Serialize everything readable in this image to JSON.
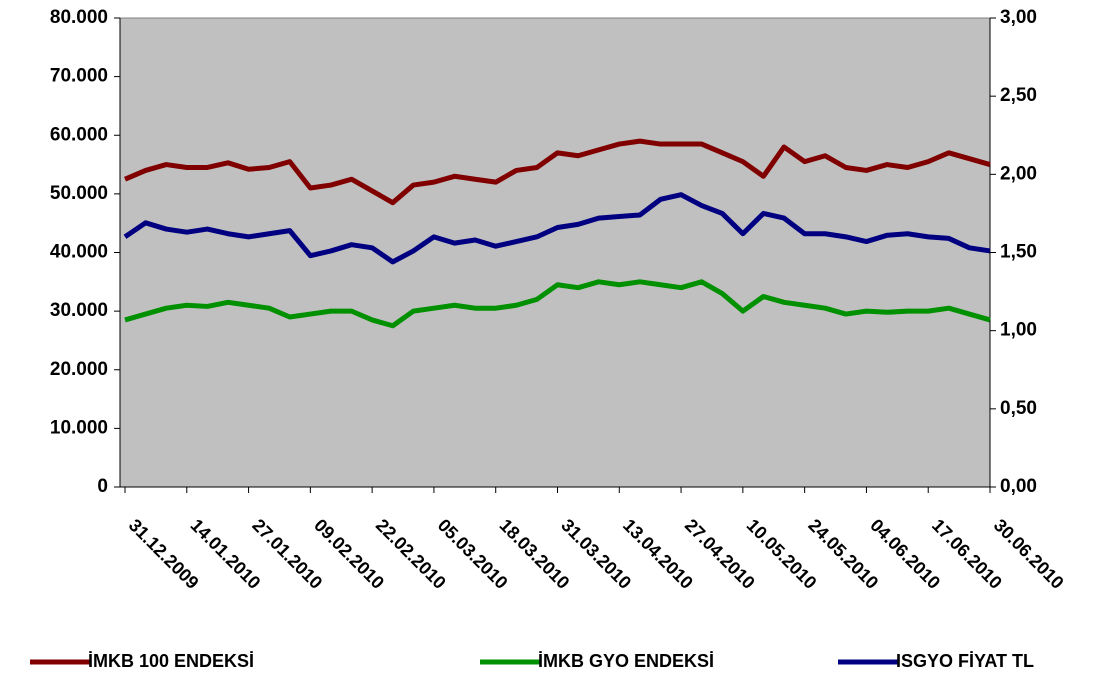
{
  "chart_data": {
    "type": "line",
    "categories": [
      "31.12.2009",
      null,
      null,
      "14.01.2010",
      null,
      null,
      "27.01.2010",
      null,
      null,
      "09.02.2010",
      null,
      null,
      "22.02.2010",
      null,
      null,
      "05.03.2010",
      null,
      null,
      "18.03.2010",
      null,
      null,
      "31.03.2010",
      null,
      null,
      "13.04.2010",
      null,
      null,
      "27.04.2010",
      null,
      null,
      "10.05.2010",
      null,
      null,
      "24.05.2010",
      null,
      null,
      "04.06.2010",
      null,
      null,
      "17.06.2010",
      null,
      null,
      "30.06.2010"
    ],
    "series": [
      {
        "name": "İMKB 100 ENDEKSİ",
        "color": "#800000",
        "values": [
          52500,
          54000,
          55000,
          54500,
          54500,
          55300,
          54200,
          54500,
          55500,
          51000,
          51500,
          52500,
          50500,
          48500,
          51500,
          52000,
          53000,
          52500,
          52000,
          54000,
          54500,
          57000,
          56500,
          57500,
          58500,
          59000,
          58500,
          58500,
          58500,
          57000,
          55500,
          53000,
          58000,
          55500,
          56500,
          54500,
          54000,
          55000,
          54500,
          55500,
          57000,
          56000,
          55000
        ]
      },
      {
        "name": "İMKB GYO ENDEKSİ",
        "color": "#009000",
        "values": [
          28500,
          29500,
          30500,
          31000,
          30800,
          31500,
          31000,
          30500,
          29000,
          29500,
          30000,
          30000,
          28500,
          27500,
          30000,
          30500,
          31000,
          30500,
          30500,
          31000,
          32000,
          34500,
          34000,
          35000,
          34500,
          35000,
          34500,
          34000,
          35000,
          33000,
          30000,
          32500,
          31500,
          31000,
          30500,
          29500,
          30000,
          29800,
          30000,
          30000,
          30500,
          29500,
          28500
        ]
      },
      {
        "name": "ISGYO FİYAT TL",
        "color": "#000080",
        "axis": "y2",
        "values": [
          1.6,
          1.69,
          1.65,
          1.63,
          1.65,
          1.62,
          1.6,
          1.62,
          1.64,
          1.48,
          1.51,
          1.55,
          1.53,
          1.44,
          1.51,
          1.6,
          1.56,
          1.58,
          1.54,
          1.57,
          1.6,
          1.66,
          1.68,
          1.72,
          1.73,
          1.74,
          1.84,
          1.87,
          1.8,
          1.75,
          1.62,
          1.75,
          1.72,
          1.62,
          1.62,
          1.6,
          1.57,
          1.61,
          1.62,
          1.6,
          1.59,
          1.53,
          1.51
        ]
      }
    ],
    "ylim": [
      0,
      80000
    ],
    "yticks": [
      0,
      {
        "value": 10000,
        "label": "10.000"
      },
      {
        "value": 20000,
        "label": "20.000"
      },
      {
        "value": 30000,
        "label": "30.000"
      },
      {
        "value": 40000,
        "label": "40.000"
      },
      {
        "value": 50000,
        "label": "50.000"
      },
      {
        "value": 60000,
        "label": "60.000"
      },
      {
        "value": 70000,
        "label": "70.000"
      },
      {
        "value": 80000,
        "label": "80.000"
      }
    ],
    "y2lim": [
      0,
      3
    ],
    "y2ticks": [
      {
        "value": 0,
        "label": "0,00"
      },
      {
        "value": 0.5,
        "label": "0,50"
      },
      {
        "value": 1,
        "label": "1,00"
      },
      {
        "value": 1.5,
        "label": "1,50"
      },
      {
        "value": 2,
        "label": "2,00"
      },
      {
        "value": 2.5,
        "label": "2,50"
      },
      {
        "value": 3,
        "label": "3,00"
      }
    ],
    "grid": false,
    "legend": "bottom"
  }
}
